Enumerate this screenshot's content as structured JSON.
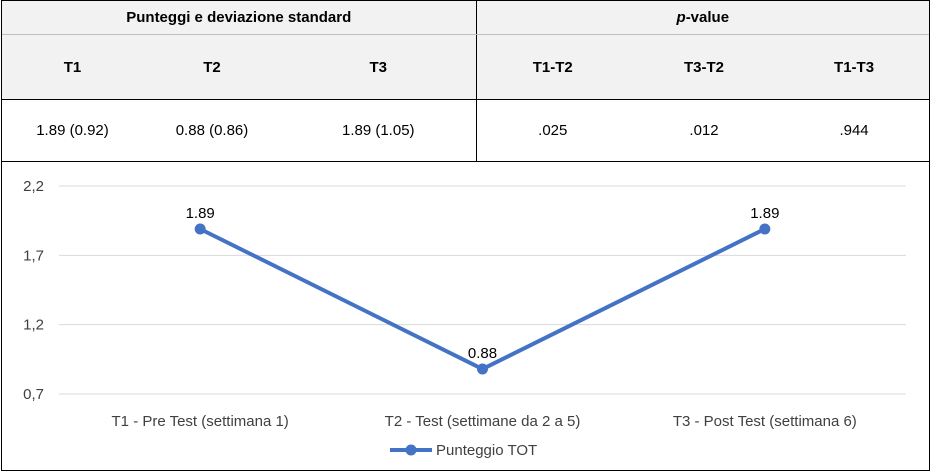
{
  "table": {
    "group_headers": {
      "scores": "Punteggi e deviazione standard",
      "pvalue_italic": "p",
      "pvalue_rest": "-value"
    },
    "column_headers": [
      "T1",
      "T2",
      "T3",
      "T1-T2",
      "T3-T2",
      "T1-T3"
    ],
    "values": [
      "1.89 (0.92)",
      "0.88 (0.86)",
      "1.89 (1.05)",
      ".025",
      ".012",
      ".944"
    ]
  },
  "chart_data": {
    "type": "line",
    "categories": [
      "T1 - Pre Test (settimana 1)",
      "T2 - Test (settimane da 2 a 5)",
      "T3 - Post Test (settimana 6)"
    ],
    "series": [
      {
        "name": "Punteggio TOT",
        "values": [
          1.89,
          0.88,
          1.89
        ],
        "data_labels": [
          "1.89",
          "0.88",
          "1.89"
        ]
      }
    ],
    "y_ticks": [
      "2,2",
      "1,7",
      "1,2",
      "0,7"
    ],
    "y_tick_values": [
      2.2,
      1.7,
      1.2,
      0.7
    ],
    "ylim": [
      0.7,
      2.2
    ],
    "grid": true,
    "legend": "bottom",
    "colors": {
      "series": "#4472c4",
      "grid": "#d9d9d9"
    }
  }
}
